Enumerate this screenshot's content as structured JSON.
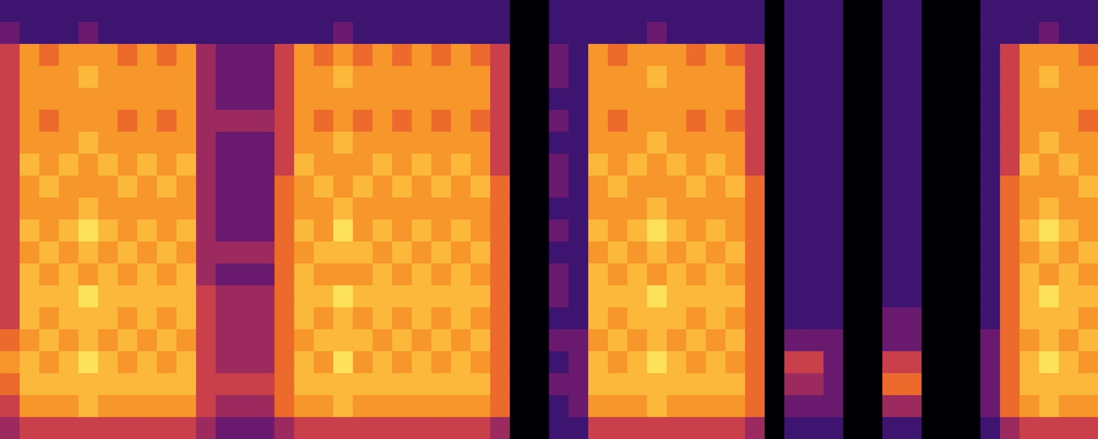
{
  "chart_data": {
    "type": "heatmap",
    "tick_labels": false,
    "xlim": [
      0,
      56
    ],
    "ylim": [
      0,
      20
    ],
    "colors": [
      "#000004",
      "#1b0c41",
      "#3d1470",
      "#6a1a6e",
      "#9c2a5f",
      "#c93f4a",
      "#ec6a2b",
      "#f7962a",
      "#fbb83a",
      "#fde15a"
    ],
    "cells": [
      [
        2,
        3,
        5,
        5,
        5,
        5,
        5,
        5,
        5,
        5,
        5,
        5,
        5,
        5,
        5,
        6,
        7,
        6,
        5,
        4
      ],
      [
        2,
        2,
        7,
        7,
        7,
        7,
        7,
        8,
        7,
        7,
        8,
        7,
        8,
        8,
        8,
        7,
        8,
        8,
        7,
        5
      ],
      [
        2,
        2,
        6,
        7,
        7,
        6,
        7,
        7,
        8,
        7,
        7,
        8,
        7,
        8,
        7,
        8,
        7,
        8,
        7,
        5
      ],
      [
        2,
        2,
        7,
        7,
        7,
        7,
        7,
        8,
        7,
        7,
        8,
        7,
        8,
        8,
        8,
        7,
        8,
        8,
        7,
        5
      ],
      [
        2,
        3,
        7,
        8,
        7,
        7,
        8,
        7,
        7,
        8,
        9,
        8,
        7,
        9,
        8,
        8,
        9,
        8,
        8,
        5
      ],
      [
        2,
        2,
        7,
        7,
        7,
        7,
        7,
        8,
        7,
        7,
        8,
        7,
        8,
        8,
        8,
        7,
        8,
        8,
        7,
        5
      ],
      [
        2,
        2,
        6,
        7,
        7,
        6,
        7,
        7,
        8,
        7,
        7,
        8,
        7,
        8,
        7,
        8,
        7,
        8,
        7,
        5
      ],
      [
        2,
        2,
        7,
        7,
        7,
        7,
        7,
        8,
        7,
        7,
        8,
        7,
        8,
        8,
        8,
        7,
        8,
        8,
        7,
        5
      ],
      [
        2,
        2,
        6,
        7,
        7,
        6,
        7,
        7,
        8,
        7,
        7,
        8,
        7,
        8,
        7,
        8,
        7,
        8,
        7,
        5
      ],
      [
        2,
        2,
        7,
        7,
        7,
        7,
        7,
        8,
        7,
        7,
        8,
        7,
        8,
        8,
        8,
        7,
        8,
        8,
        7,
        5
      ],
      [
        2,
        2,
        4,
        4,
        4,
        4,
        4,
        4,
        4,
        4,
        4,
        4,
        4,
        5,
        5,
        5,
        5,
        5,
        5,
        4
      ],
      [
        2,
        2,
        3,
        3,
        3,
        4,
        3,
        3,
        3,
        3,
        3,
        4,
        3,
        4,
        4,
        4,
        4,
        5,
        4,
        3
      ],
      [
        2,
        2,
        3,
        3,
        3,
        4,
        3,
        3,
        3,
        3,
        3,
        4,
        3,
        4,
        4,
        4,
        4,
        5,
        4,
        3
      ],
      [
        2,
        2,
        3,
        3,
        3,
        4,
        3,
        3,
        3,
        3,
        3,
        4,
        3,
        4,
        4,
        4,
        4,
        5,
        4,
        3
      ],
      [
        2,
        2,
        5,
        5,
        5,
        5,
        5,
        5,
        6,
        6,
        6,
        6,
        6,
        6,
        6,
        6,
        6,
        6,
        6,
        4
      ],
      [
        2,
        2,
        7,
        7,
        7,
        7,
        7,
        8,
        7,
        7,
        8,
        7,
        8,
        8,
        8,
        7,
        8,
        8,
        7,
        5
      ],
      [
        2,
        2,
        6,
        7,
        7,
        6,
        7,
        7,
        8,
        7,
        7,
        8,
        7,
        8,
        7,
        8,
        7,
        8,
        7,
        5
      ],
      [
        2,
        3,
        7,
        8,
        7,
        7,
        8,
        7,
        7,
        8,
        9,
        8,
        7,
        9,
        8,
        8,
        9,
        8,
        8,
        5
      ],
      [
        2,
        2,
        6,
        7,
        7,
        6,
        7,
        7,
        8,
        7,
        7,
        8,
        7,
        8,
        7,
        8,
        7,
        8,
        7,
        5
      ],
      [
        2,
        2,
        7,
        7,
        7,
        7,
        7,
        8,
        7,
        7,
        8,
        7,
        8,
        8,
        8,
        7,
        8,
        8,
        7,
        5
      ],
      [
        2,
        2,
        6,
        7,
        7,
        6,
        7,
        7,
        8,
        7,
        7,
        8,
        7,
        8,
        7,
        8,
        7,
        8,
        7,
        5
      ],
      [
        2,
        2,
        7,
        7,
        7,
        7,
        7,
        8,
        7,
        7,
        8,
        7,
        8,
        8,
        8,
        7,
        8,
        8,
        7,
        5
      ],
      [
        2,
        2,
        6,
        7,
        7,
        6,
        7,
        7,
        8,
        7,
        7,
        8,
        7,
        8,
        7,
        8,
        7,
        8,
        7,
        5
      ],
      [
        2,
        2,
        7,
        7,
        7,
        7,
        7,
        8,
        7,
        7,
        8,
        7,
        8,
        8,
        8,
        7,
        8,
        8,
        7,
        5
      ],
      [
        2,
        2,
        6,
        7,
        7,
        6,
        7,
        7,
        8,
        7,
        7,
        8,
        7,
        8,
        7,
        8,
        7,
        8,
        7,
        5
      ],
      [
        2,
        2,
        5,
        5,
        5,
        5,
        5,
        5,
        6,
        6,
        6,
        6,
        6,
        6,
        6,
        6,
        6,
        6,
        6,
        4
      ],
      [
        0,
        0,
        0,
        0,
        0,
        0,
        0,
        0,
        0,
        0,
        0,
        0,
        0,
        0,
        0,
        0,
        0,
        0,
        0,
        0
      ],
      [
        0,
        0,
        0,
        0,
        0,
        0,
        0,
        0,
        0,
        0,
        0,
        0,
        0,
        0,
        0,
        0,
        0,
        0,
        0,
        0
      ],
      [
        2,
        2,
        3,
        3,
        2,
        3,
        2,
        3,
        3,
        2,
        3,
        2,
        3,
        3,
        2,
        3,
        2,
        3,
        2,
        2
      ],
      [
        2,
        2,
        2,
        2,
        2,
        2,
        2,
        2,
        2,
        2,
        2,
        2,
        2,
        2,
        2,
        3,
        3,
        3,
        3,
        2
      ],
      [
        2,
        2,
        7,
        7,
        7,
        7,
        7,
        8,
        7,
        7,
        8,
        7,
        8,
        8,
        8,
        7,
        8,
        8,
        7,
        5
      ],
      [
        2,
        2,
        6,
        7,
        7,
        6,
        7,
        7,
        8,
        7,
        7,
        8,
        7,
        8,
        7,
        8,
        7,
        8,
        7,
        5
      ],
      [
        2,
        2,
        7,
        7,
        7,
        7,
        7,
        8,
        7,
        7,
        8,
        7,
        8,
        8,
        8,
        7,
        8,
        8,
        7,
        5
      ],
      [
        2,
        3,
        7,
        8,
        7,
        7,
        8,
        7,
        7,
        8,
        9,
        8,
        7,
        9,
        8,
        8,
        9,
        8,
        8,
        5
      ],
      [
        2,
        2,
        7,
        7,
        7,
        7,
        7,
        8,
        7,
        7,
        8,
        7,
        8,
        8,
        8,
        7,
        8,
        8,
        7,
        5
      ],
      [
        2,
        2,
        6,
        7,
        7,
        6,
        7,
        7,
        8,
        7,
        7,
        8,
        7,
        8,
        7,
        8,
        7,
        8,
        7,
        5
      ],
      [
        2,
        2,
        7,
        7,
        7,
        7,
        7,
        8,
        7,
        7,
        8,
        7,
        8,
        8,
        8,
        7,
        8,
        8,
        7,
        5
      ],
      [
        2,
        2,
        6,
        7,
        7,
        6,
        7,
        7,
        8,
        7,
        7,
        8,
        7,
        8,
        7,
        8,
        7,
        8,
        7,
        5
      ],
      [
        2,
        2,
        5,
        5,
        5,
        5,
        5,
        5,
        6,
        6,
        6,
        6,
        6,
        6,
        6,
        6,
        6,
        6,
        6,
        4
      ],
      [
        0,
        0,
        0,
        0,
        0,
        0,
        0,
        0,
        0,
        0,
        0,
        0,
        0,
        0,
        0,
        0,
        0,
        0,
        0,
        0
      ],
      [
        2,
        2,
        2,
        2,
        2,
        2,
        2,
        2,
        2,
        2,
        2,
        2,
        2,
        2,
        2,
        3,
        5,
        4,
        3,
        2
      ],
      [
        2,
        2,
        2,
        2,
        2,
        2,
        2,
        2,
        2,
        2,
        2,
        2,
        2,
        2,
        2,
        3,
        5,
        4,
        3,
        2
      ],
      [
        2,
        2,
        2,
        2,
        2,
        2,
        2,
        2,
        2,
        2,
        2,
        2,
        2,
        2,
        2,
        3,
        3,
        3,
        3,
        2
      ],
      [
        0,
        0,
        0,
        0,
        0,
        0,
        0,
        0,
        0,
        0,
        0,
        0,
        0,
        0,
        0,
        0,
        0,
        0,
        0,
        0
      ],
      [
        0,
        0,
        0,
        0,
        0,
        0,
        0,
        0,
        0,
        0,
        0,
        0,
        0,
        0,
        0,
        0,
        0,
        0,
        0,
        0
      ],
      [
        2,
        2,
        2,
        2,
        2,
        2,
        2,
        2,
        2,
        2,
        2,
        2,
        2,
        2,
        3,
        3,
        5,
        6,
        4,
        2
      ],
      [
        2,
        2,
        2,
        2,
        2,
        2,
        2,
        2,
        2,
        2,
        2,
        2,
        2,
        2,
        3,
        3,
        5,
        6,
        4,
        2
      ],
      [
        0,
        0,
        0,
        0,
        0,
        0,
        0,
        0,
        0,
        0,
        0,
        0,
        0,
        0,
        0,
        0,
        0,
        0,
        0,
        0
      ],
      [
        0,
        0,
        0,
        0,
        0,
        0,
        0,
        0,
        0,
        0,
        0,
        0,
        0,
        0,
        0,
        0,
        0,
        0,
        0,
        0
      ],
      [
        0,
        0,
        0,
        0,
        0,
        0,
        0,
        0,
        0,
        0,
        0,
        0,
        0,
        0,
        0,
        0,
        0,
        0,
        0,
        0
      ],
      [
        2,
        2,
        2,
        2,
        2,
        2,
        2,
        2,
        2,
        2,
        2,
        2,
        2,
        2,
        2,
        3,
        3,
        3,
        3,
        2
      ],
      [
        2,
        2,
        5,
        5,
        5,
        5,
        5,
        5,
        6,
        6,
        6,
        6,
        6,
        6,
        6,
        6,
        6,
        6,
        6,
        4
      ],
      [
        2,
        2,
        7,
        7,
        7,
        7,
        7,
        8,
        7,
        7,
        8,
        7,
        8,
        8,
        8,
        7,
        8,
        8,
        7,
        5
      ],
      [
        2,
        3,
        7,
        8,
        7,
        7,
        8,
        7,
        7,
        8,
        9,
        8,
        7,
        9,
        8,
        8,
        9,
        8,
        8,
        5
      ],
      [
        2,
        2,
        7,
        7,
        7,
        7,
        7,
        8,
        7,
        7,
        8,
        7,
        8,
        8,
        8,
        7,
        8,
        8,
        7,
        5
      ],
      [
        2,
        2,
        6,
        7,
        7,
        6,
        7,
        7,
        8,
        7,
        7,
        8,
        7,
        8,
        7,
        8,
        7,
        8,
        7,
        5
      ]
    ]
  }
}
